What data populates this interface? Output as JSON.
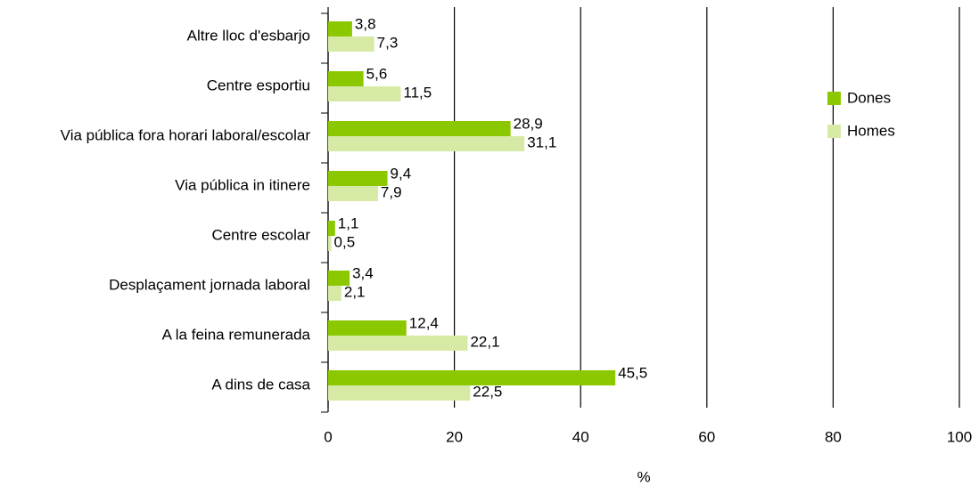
{
  "chart_data": {
    "type": "hbar",
    "categories": [
      "Altre lloc d'esbarjo",
      "Centre esportiu",
      "Via pública fora horari laboral/escolar",
      "Via pública in itinere",
      "Centre escolar",
      "Desplaçament jornada laboral",
      "A la feina remunerada",
      "A dins de casa"
    ],
    "series": [
      {
        "name": "Dones",
        "color": "#8cc800",
        "values": [
          3.8,
          5.6,
          28.9,
          9.4,
          1.1,
          3.4,
          12.4,
          45.5
        ],
        "value_labels": [
          "3,8",
          "5,6",
          "28,9",
          "9,4",
          "1,1",
          "3,4",
          "12,4",
          "45,5"
        ]
      },
      {
        "name": "Homes",
        "color": "#d6eaa6",
        "values": [
          7.3,
          11.5,
          31.1,
          7.9,
          0.5,
          2.1,
          22.1,
          22.5
        ],
        "value_labels": [
          "7,3",
          "11,5",
          "31,1",
          "7,9",
          "0,5",
          "2,1",
          "22,1",
          "22,5"
        ]
      }
    ],
    "xlabel": "%",
    "xlim": [
      0,
      100
    ],
    "xticks": [
      0,
      20,
      40,
      60,
      80,
      100
    ],
    "grid": true,
    "legend": "right"
  }
}
